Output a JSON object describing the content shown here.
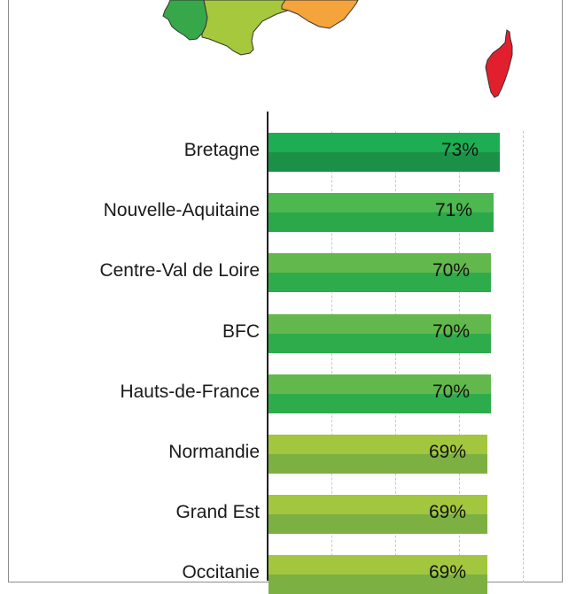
{
  "chart_data": {
    "type": "bar",
    "orientation": "horizontal",
    "title": "",
    "xlabel": "",
    "ylabel": "",
    "categories": [
      "Bretagne",
      "Nouvelle-Aquitaine",
      "Centre-Val de Loire",
      "BFC",
      "Hauts-de-France",
      "Normandie",
      "Grand Est",
      "Occitanie"
    ],
    "values": [
      73,
      71,
      70,
      70,
      70,
      69,
      69,
      69
    ],
    "value_labels": [
      "73%",
      "71%",
      "70%",
      "70%",
      "70%",
      "69%",
      "69%",
      "69%"
    ],
    "unit": "%",
    "grid": true,
    "legend": null,
    "colors": {
      "Bretagne": [
        "#1ead52",
        "#1a9147"
      ],
      "Nouvelle-Aquitaine": [
        "#4cb84f",
        "#2aa84a"
      ],
      "Centre-Val de Loire": [
        "#62b84c",
        "#2eac4c"
      ],
      "BFC": [
        "#62b84c",
        "#2eac4c"
      ],
      "Hauts-de-France": [
        "#62b84c",
        "#2eac4c"
      ],
      "Normandie": [
        "#a2c63e",
        "#7cb043"
      ],
      "Grand Est": [
        "#a2c63e",
        "#7cb043"
      ],
      "Occitanie": [
        "#a2c63e",
        "#7cb043"
      ]
    },
    "map_regions_visible": [
      {
        "name": "west-region",
        "color": "#36a84a"
      },
      {
        "name": "south-region",
        "color": "#9cc43e"
      },
      {
        "name": "south-east-region",
        "color": "#f4a43a"
      },
      {
        "name": "Corse",
        "color": "#e21f2d"
      }
    ]
  }
}
